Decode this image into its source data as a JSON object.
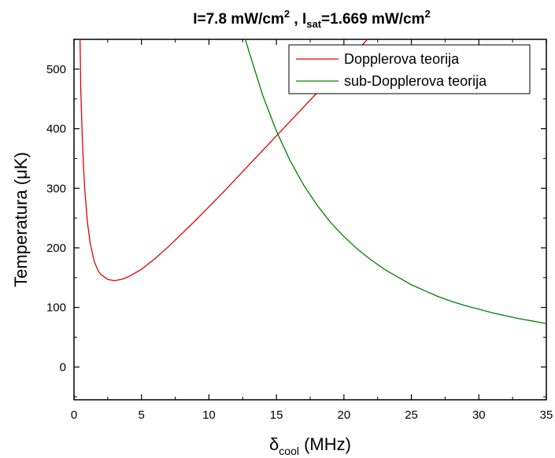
{
  "chart_data": {
    "type": "line",
    "title": {
      "part1": "I=7.8 mW/cm",
      "sup1": "2",
      "part2": " , I",
      "sub": "sat",
      "part3": "=1.669 mW/cm",
      "sup2": "2"
    },
    "xlabel": {
      "symbol": "δ",
      "sub": "cool",
      "unit": " (MHz)"
    },
    "ylabel": "Temperatura (μK)",
    "xlim": [
      0,
      35
    ],
    "ylim": [
      -55,
      550
    ],
    "xticks": [
      "0",
      "5",
      "10",
      "15",
      "20",
      "25",
      "30",
      "35"
    ],
    "xtick_values": [
      0,
      5,
      10,
      15,
      20,
      25,
      30,
      35
    ],
    "yticks": [
      "0",
      "100",
      "200",
      "300",
      "400",
      "500"
    ],
    "ytick_values": [
      0,
      100,
      200,
      300,
      400,
      500
    ],
    "grid": false,
    "legend_position": "top-right",
    "series": [
      {
        "name": "Dopplerova teorija",
        "color": "#e00000",
        "x": [
          0.45,
          0.5,
          0.6,
          0.7,
          0.8,
          1.0,
          1.2,
          1.5,
          1.8,
          2.0,
          2.5,
          3.0,
          3.5,
          4.0,
          5.0,
          6.0,
          7.0,
          8.0,
          9.0,
          10.0,
          11.0,
          12.0,
          13.0,
          14.0,
          15.0,
          16.0,
          17.0,
          18.0,
          19.0,
          20.0,
          21.0,
          22.0,
          22.5
        ],
        "y": [
          550,
          468,
          393,
          338,
          297,
          242,
          208,
          177,
          161,
          155,
          147,
          145,
          147,
          151,
          164,
          182,
          202,
          224,
          246,
          269,
          292,
          316,
          340,
          364,
          388,
          412,
          436,
          460,
          484,
          508,
          532,
          556,
          568
        ]
      },
      {
        "name": "sub-Dopplerova teorija",
        "color": "#008000",
        "x": [
          12.7,
          13.0,
          14.0,
          15.0,
          16.0,
          17.0,
          18.0,
          19.0,
          20.0,
          21.0,
          22.0,
          23.0,
          24.0,
          25.0,
          26.0,
          27.0,
          28.0,
          29.0,
          30.0,
          31.0,
          32.0,
          33.0,
          34.0,
          35.0
        ],
        "y": [
          550,
          527,
          455,
          396,
          347,
          306,
          272,
          243,
          219,
          198,
          180,
          164,
          151,
          138,
          128,
          118,
          110,
          103,
          97,
          91,
          86,
          81,
          77,
          73
        ]
      }
    ]
  }
}
